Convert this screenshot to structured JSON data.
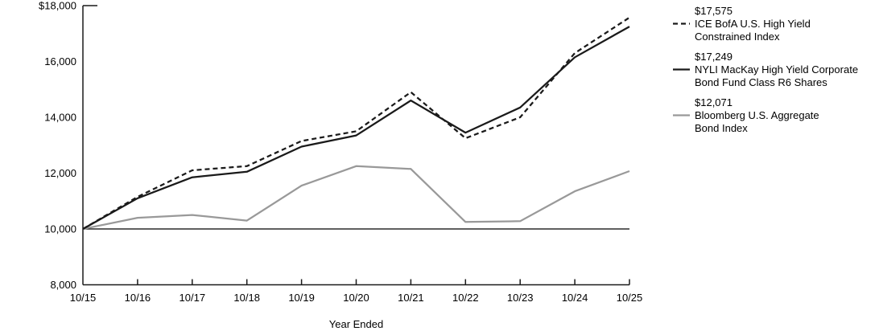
{
  "chart_data": {
    "type": "line",
    "title": "",
    "xlabel": "Year Ended",
    "ylabel": "",
    "x_ticklabels": [
      "10/15",
      "10/16",
      "10/17",
      "10/18",
      "10/19",
      "10/20",
      "10/21",
      "10/22",
      "10/23",
      "10/24",
      "10/25"
    ],
    "y_ticklabels": [
      "$18,000",
      "16,000",
      "14,000",
      "12,000",
      "10,000",
      "8,000"
    ],
    "y_tickvalues": [
      18000,
      16000,
      14000,
      12000,
      10000,
      8000
    ],
    "ylim": [
      8000,
      18000
    ],
    "baseline_value": 10000,
    "grid": false,
    "legend_position": "right",
    "series": [
      {
        "name": "ICE BofA U.S. High Yield Constrained Index",
        "style": "dashed",
        "color": "#1a1a1a",
        "final_value": 17575,
        "values": [
          10000,
          11150,
          12100,
          12250,
          13150,
          13500,
          14900,
          13250,
          14000,
          16300,
          17575
        ]
      },
      {
        "name": "NYLI MacKay High Yield Corporate Bond Fund Class R6 Shares",
        "style": "solid",
        "color": "#1a1a1a",
        "final_value": 17249,
        "values": [
          10000,
          11100,
          11850,
          12050,
          12950,
          13350,
          14600,
          13450,
          14350,
          16150,
          17249
        ]
      },
      {
        "name": "Bloomberg U.S. Aggregate Bond Index",
        "style": "solid",
        "color": "#999999",
        "final_value": 12071,
        "values": [
          10000,
          10400,
          10500,
          10300,
          11550,
          12250,
          12150,
          10250,
          10280,
          11350,
          12071
        ]
      }
    ]
  },
  "legend": {
    "entries": [
      {
        "amount": "$17,575",
        "name_lines": [
          "ICE BofA U.S. High Yield",
          "Constrained Index"
        ],
        "swatch_style": "dashed",
        "swatch_color": "#1a1a1a"
      },
      {
        "amount": "$17,249",
        "name_lines": [
          "NYLI MacKay High Yield Corporate",
          "Bond Fund Class R6 Shares"
        ],
        "swatch_style": "solid",
        "swatch_color": "#1a1a1a"
      },
      {
        "amount": "$12,071",
        "name_lines": [
          "Bloomberg U.S. Aggregate",
          "Bond Index"
        ],
        "swatch_style": "solid",
        "swatch_color": "#999999"
      }
    ]
  },
  "colors": {
    "axis": "#1a1a1a",
    "text": "#000000",
    "background": "#ffffff"
  }
}
